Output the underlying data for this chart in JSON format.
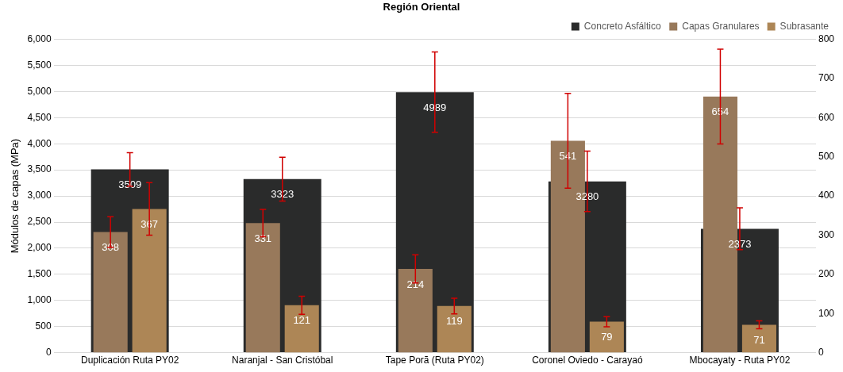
{
  "chart_data": {
    "type": "bar",
    "title": "Región Oriental",
    "ylabel": "Módulos de capas (MPa)",
    "categories": [
      "Duplicación Ruta PY02",
      "Naranjal - San Cristóbal",
      "Tape Porã (Ruta PY02)",
      "Coronel Oviedo - Carayaó",
      "Mbocayaty - Ruta PY02"
    ],
    "series": [
      {
        "name": "Concreto Asfáltico",
        "color": "#2a2b2b",
        "values": [
          3509,
          3323,
          4989,
          3280,
          2373
        ],
        "errors": [
          320,
          420,
          770,
          580,
          400
        ]
      },
      {
        "name": "Capas Granulares",
        "color": "#98795b",
        "axis": "y2",
        "values": [
          308,
          331,
          214,
          541,
          654
        ],
        "errors": [
          39,
          35,
          36,
          121,
          121
        ]
      },
      {
        "name": "Subrasante",
        "color": "#ad8656",
        "axis": "y2",
        "values": [
          367,
          121,
          119,
          79,
          71
        ],
        "errors": [
          67,
          23,
          20,
          13,
          10
        ]
      }
    ],
    "ylim": [
      0,
      6000
    ],
    "yticks": [
      0,
      500,
      {
        "value": 1000,
        "label": "1,000"
      },
      {
        "value": 1500,
        "label": "1,500"
      },
      {
        "value": 2000,
        "label": "2,000"
      },
      {
        "value": 2500,
        "label": "2,500"
      },
      {
        "value": 3000,
        "label": "3,000"
      },
      {
        "value": 3500,
        "label": "3,500"
      },
      {
        "value": 4000,
        "label": "4,000"
      },
      {
        "value": 4500,
        "label": "4,500"
      },
      {
        "value": 5000,
        "label": "5,000"
      },
      {
        "value": 5500,
        "label": "5,500"
      },
      {
        "value": 6000,
        "label": "6,000"
      }
    ],
    "y2lim": [
      0,
      800
    ],
    "y2ticks": [
      0,
      100,
      200,
      300,
      400,
      500,
      600,
      700,
      800
    ],
    "grid": "y",
    "legend": "top right",
    "data_labels": true
  }
}
